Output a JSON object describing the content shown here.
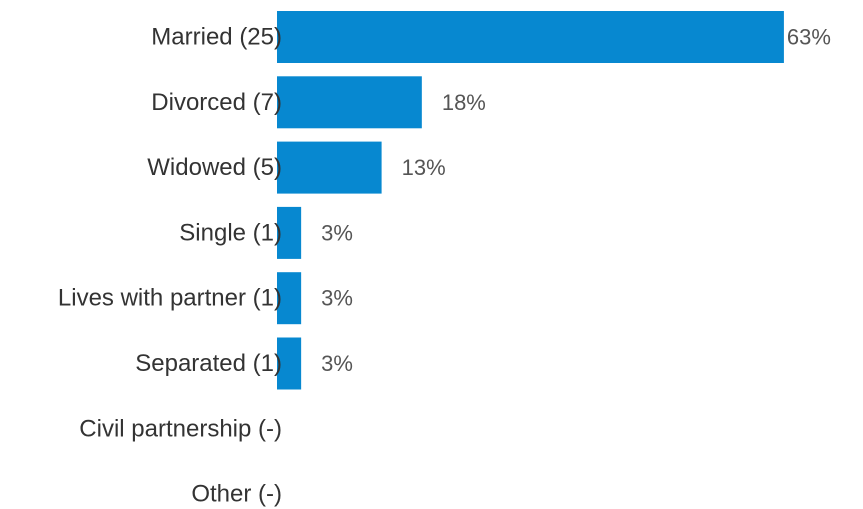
{
  "chart_data": {
    "type": "bar",
    "orientation": "horizontal",
    "categories": [
      "Married (25)",
      "Divorced (7)",
      "Widowed (5)",
      "Single (1)",
      "Lives with partner (1)",
      "Separated (1)",
      "Civil partnership (-)",
      "Other (-)"
    ],
    "values": [
      63,
      18,
      13,
      3,
      3,
      3,
      null,
      null
    ],
    "value_labels": [
      "63%",
      "18%",
      "13%",
      "3%",
      "3%",
      "3%",
      "",
      ""
    ],
    "unit": "%",
    "xlim": [
      0,
      65
    ],
    "bar_color": "#0788d0",
    "title": "",
    "xlabel": "",
    "ylabel": "",
    "grid": false,
    "legend": "none"
  }
}
